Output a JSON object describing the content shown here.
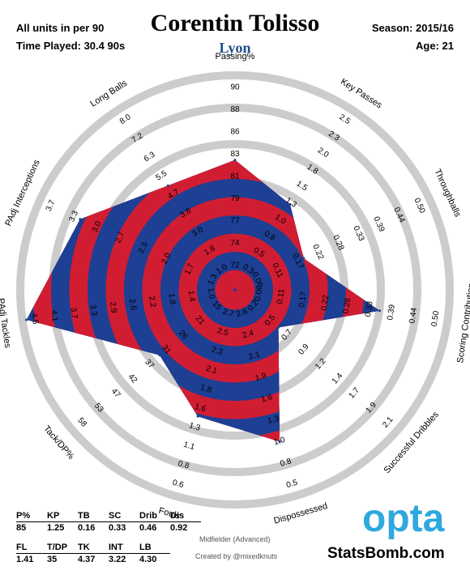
{
  "header": {
    "units": "All units in per 90",
    "time_played": "Time Played: 30.4 90s",
    "player": "Corentin Tolisso",
    "team": "Lyon",
    "season": "Season: 2015/16",
    "age": "Age: 21"
  },
  "colors": {
    "ring": "#cccccc",
    "blue": "#1d3f94",
    "red": "#d11d32",
    "team": "#1f4e8c",
    "opta": "#2fa8e0"
  },
  "chart_data": {
    "type": "radar",
    "metrics": [
      {
        "name": "Passing%",
        "ticks": [
          "72",
          "74",
          "77",
          "79",
          "81",
          "83",
          "86",
          "88",
          "90"
        ],
        "value": 85,
        "value_fraction": 0.58
      },
      {
        "name": "Key Passes",
        "ticks": [
          "0.3",
          "0.5",
          "0.8",
          "1.0",
          "1.3",
          "1.5",
          "1.8",
          "2.0",
          "2.3",
          "2.5"
        ],
        "value": 1.25,
        "value_fraction": 0.44
      },
      {
        "name": "Throughballs",
        "ticks": [
          "0.06",
          "0.11",
          "0.17",
          "0.22",
          "0.28",
          "0.33",
          "0.39",
          "0.44",
          "0.50"
        ],
        "value": 0.16,
        "value_fraction": 0.31
      },
      {
        "name": "Scoring Contribution",
        "ticks": [
          "0.06",
          "0.11",
          "0.17",
          "0.22",
          "0.28",
          "0.33",
          "0.39",
          "0.44",
          "0.50"
        ],
        "value": 0.33,
        "value_fraction": 0.66
      },
      {
        "name": "Successful Dribbles",
        "ticks": [
          "0.2",
          "0.5",
          "0.7",
          "0.9",
          "1.2",
          "1.4",
          "1.7",
          "1.9",
          "2.1"
        ],
        "value": 0.46,
        "value_fraction": 0.22
      },
      {
        "name": "Dispossessed",
        "ticks": [
          "2.6",
          "2.4",
          "2.1",
          "1.9",
          "1.6",
          "1.3",
          "1.0",
          "0.8",
          "0.5"
        ],
        "value": 0.92,
        "value_fraction": 0.72
      },
      {
        "name": "Fouls",
        "ticks": [
          "2.7",
          "2.5",
          "2.3",
          "2.1",
          "1.8",
          "1.6",
          "1.3",
          "1.1",
          "0.8",
          "0.6"
        ],
        "value": 1.41,
        "value_fraction": 0.59
      },
      {
        "name": "Tack/DP%",
        "ticks": [
          "15",
          "21",
          "26",
          "31",
          "37",
          "42",
          "47",
          "53",
          "58"
        ],
        "value": 35,
        "value_fraction": 0.43
      },
      {
        "name": "PAdj Tackles",
        "ticks": [
          "1.0",
          "1.4",
          "1.8",
          "2.2",
          "2.6",
          "2.9",
          "3.3",
          "3.7",
          "4.1",
          "4.5"
        ],
        "value": 4.37,
        "value_fraction": 0.98
      },
      {
        "name": "PAdj Interceptions",
        "ticks": [
          "1.3",
          "1.7",
          "2.0",
          "2.3",
          "2.7",
          "3.0",
          "3.3",
          "3.7"
        ],
        "value": 3.22,
        "value_fraction": 0.78
      },
      {
        "name": "Long Balls",
        "ticks": [
          "1.0",
          "1.8",
          "3.0",
          "3.8",
          "4.7",
          "5.5",
          "6.3",
          "7.2",
          "8.0"
        ],
        "value": 4.3,
        "value_fraction": 0.55
      }
    ]
  },
  "stats_table": {
    "row1_headers": [
      "P%",
      "KP",
      "TB",
      "SC",
      "Drib",
      "Dis"
    ],
    "row1_values": [
      "85",
      "1.25",
      "0.16",
      "0.33",
      "0.46",
      "0.92"
    ],
    "row2_headers": [
      "FL",
      "T/DP",
      "TK",
      "INT",
      "LB"
    ],
    "row2_values": [
      "1.41",
      "35",
      "4.37",
      "3.22",
      "4.30"
    ]
  },
  "footer": {
    "role": "Midfielder (Advanced)",
    "creator": "Created by @mixedknuts",
    "opta": "opta",
    "brand": "StatsBomb.com"
  }
}
